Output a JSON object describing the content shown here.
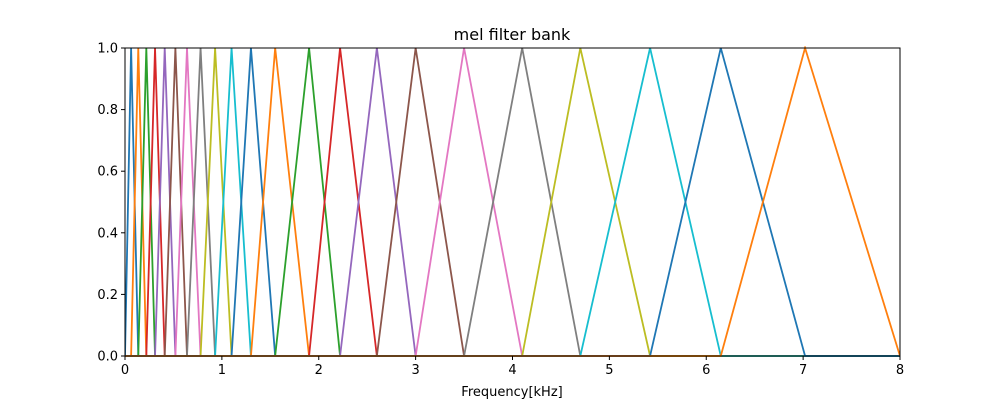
{
  "chart_data": {
    "type": "line",
    "title": "mel filter bank",
    "xlabel": "Frequency[kHz]",
    "ylabel": "",
    "xlim": [
      0,
      8
    ],
    "ylim": [
      0,
      1
    ],
    "x_ticks": [
      "0",
      "1",
      "2",
      "3",
      "4",
      "5",
      "6",
      "7",
      "8"
    ],
    "y_ticks": [
      "0.0",
      "0.2",
      "0.4",
      "0.6",
      "0.8",
      "1.0"
    ],
    "grid": false,
    "legend": "none",
    "filter_edges_khz": [
      0.0,
      0.063,
      0.137,
      0.22,
      0.31,
      0.41,
      0.52,
      0.64,
      0.78,
      0.93,
      1.1,
      1.3,
      1.55,
      1.9,
      2.22,
      2.6,
      3.0,
      3.5,
      4.1,
      4.7,
      5.42,
      6.15,
      7.02,
      8.0
    ],
    "series": [
      {
        "x": [
          0.0,
          0.063,
          0.137
        ],
        "y": [
          0,
          1,
          0
        ]
      },
      {
        "x": [
          0.063,
          0.137,
          0.22
        ],
        "y": [
          0,
          1,
          0
        ]
      },
      {
        "x": [
          0.137,
          0.22,
          0.31
        ],
        "y": [
          0,
          1,
          0
        ]
      },
      {
        "x": [
          0.22,
          0.31,
          0.41
        ],
        "y": [
          0,
          1,
          0
        ]
      },
      {
        "x": [
          0.31,
          0.41,
          0.52
        ],
        "y": [
          0,
          1,
          0
        ]
      },
      {
        "x": [
          0.41,
          0.52,
          0.64
        ],
        "y": [
          0,
          1,
          0
        ]
      },
      {
        "x": [
          0.52,
          0.64,
          0.78
        ],
        "y": [
          0,
          1,
          0
        ]
      },
      {
        "x": [
          0.64,
          0.78,
          0.93
        ],
        "y": [
          0,
          1,
          0
        ]
      },
      {
        "x": [
          0.78,
          0.93,
          1.1
        ],
        "y": [
          0,
          1,
          0
        ]
      },
      {
        "x": [
          0.93,
          1.1,
          1.3
        ],
        "y": [
          0,
          1,
          0
        ]
      },
      {
        "x": [
          1.1,
          1.3,
          1.55
        ],
        "y": [
          0,
          1,
          0
        ]
      },
      {
        "x": [
          1.3,
          1.55,
          1.9
        ],
        "y": [
          0,
          1,
          0
        ]
      },
      {
        "x": [
          1.55,
          1.9,
          2.22
        ],
        "y": [
          0,
          1,
          0
        ]
      },
      {
        "x": [
          1.9,
          2.22,
          2.6
        ],
        "y": [
          0,
          1,
          0
        ]
      },
      {
        "x": [
          2.22,
          2.6,
          3.0
        ],
        "y": [
          0,
          1,
          0
        ]
      },
      {
        "x": [
          2.6,
          3.0,
          3.5
        ],
        "y": [
          0,
          1,
          0
        ]
      },
      {
        "x": [
          3.0,
          3.5,
          4.1
        ],
        "y": [
          0,
          1,
          0
        ]
      },
      {
        "x": [
          3.5,
          4.1,
          4.7
        ],
        "y": [
          0,
          1,
          0
        ]
      },
      {
        "x": [
          4.1,
          4.7,
          5.42
        ],
        "y": [
          0,
          1,
          0
        ]
      },
      {
        "x": [
          4.7,
          5.42,
          6.15
        ],
        "y": [
          0,
          1,
          0
        ]
      },
      {
        "x": [
          5.42,
          6.15,
          7.02
        ],
        "y": [
          0,
          1,
          0
        ]
      },
      {
        "x": [
          6.15,
          7.02,
          8.0
        ],
        "y": [
          0,
          1,
          0
        ]
      }
    ],
    "colors": [
      "#1f77b4",
      "#ff7f0e",
      "#2ca02c",
      "#d62728",
      "#9467bd",
      "#8c564b",
      "#e377c2",
      "#7f7f7f",
      "#bcbd22",
      "#17becf"
    ]
  }
}
